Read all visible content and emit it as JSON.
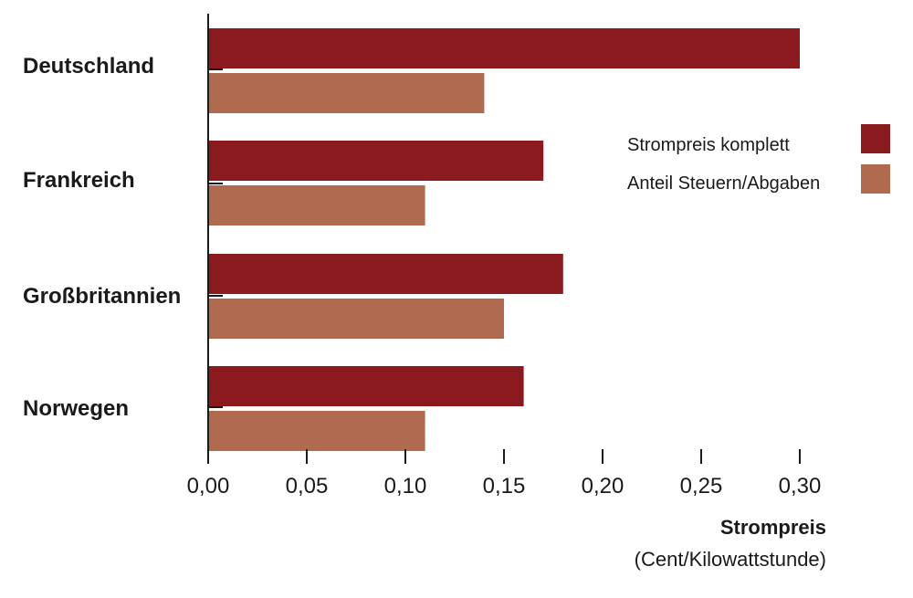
{
  "chart_data": {
    "type": "bar",
    "orientation": "horizontal",
    "categories": [
      "Deutschland",
      "Frankreich",
      "Großbritannien",
      "Norwegen"
    ],
    "series": [
      {
        "name": "Strompreis komplett",
        "values": [
          0.3,
          0.17,
          0.18,
          0.16
        ],
        "color": "#8b1a1f"
      },
      {
        "name": "Anteil Steuern/Abgaben",
        "values": [
          0.14,
          0.11,
          0.15,
          0.11
        ],
        "color": "#b06a50"
      }
    ],
    "xlim": [
      0,
      0.3
    ],
    "xticks": [
      0.0,
      0.05,
      0.1,
      0.15,
      0.2,
      0.25,
      0.3
    ],
    "xtick_labels": [
      "0,00",
      "0,05",
      "0,10",
      "0,15",
      "0,20",
      "0,25",
      "0,30"
    ],
    "xlabel": "Strompreis",
    "xlabel_sub": "(Cent/Kilowattstunde)",
    "legend_position": "right",
    "grid": false
  }
}
